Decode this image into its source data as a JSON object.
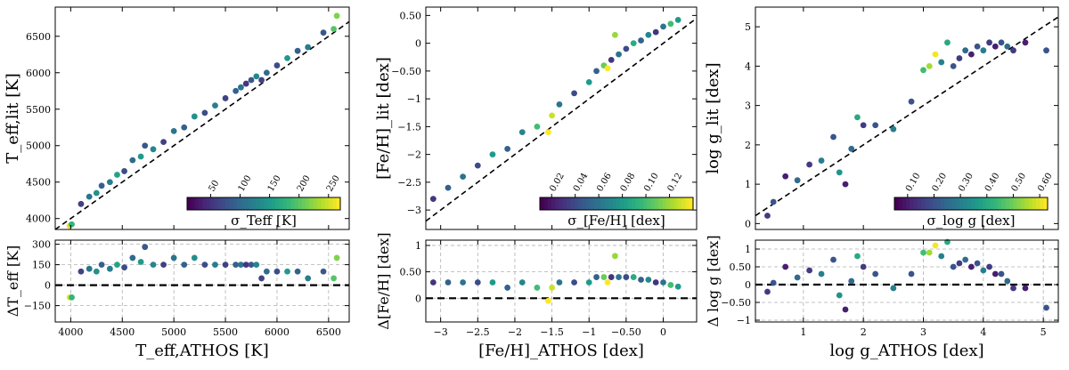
{
  "chart_data": [
    {
      "type": "scatter",
      "panel": "teff",
      "ylabel_top": "T_eff,lit [K]",
      "ylabel_bottom": "ΔT_eff [K]",
      "xlabel": "T_eff,ATHOS [K]",
      "xlim": [
        3850,
        6700
      ],
      "ylim_top": [
        3850,
        6900
      ],
      "ylim_bottom": [
        -270,
        330
      ],
      "xticks": [
        4000,
        4500,
        5000,
        5500,
        6000,
        6500
      ],
      "yticks_top": [
        4000,
        4500,
        5000,
        5500,
        6000,
        6500
      ],
      "yticks_bottom": [
        -150,
        0,
        150,
        300
      ],
      "one_to_one_line": true,
      "zero_line": true,
      "grid_bottom": true,
      "colorbar": {
        "label": "σ_Teff [K]",
        "ticks": [
          50,
          100,
          150,
          200,
          250
        ],
        "range": [
          10,
          270
        ],
        "position": "lower-right"
      },
      "points": [
        {
          "x": 3990,
          "y": 3900,
          "c": 260
        },
        {
          "x": 4010,
          "y": 3920,
          "c": 180
        },
        {
          "x": 4100,
          "y": 4200,
          "c": 60
        },
        {
          "x": 4180,
          "y": 4300,
          "c": 110
        },
        {
          "x": 4250,
          "y": 4350,
          "c": 140
        },
        {
          "x": 4300,
          "y": 4450,
          "c": 90
        },
        {
          "x": 4380,
          "y": 4500,
          "c": 120
        },
        {
          "x": 4450,
          "y": 4600,
          "c": 160
        },
        {
          "x": 4520,
          "y": 4650,
          "c": 70
        },
        {
          "x": 4600,
          "y": 4800,
          "c": 100
        },
        {
          "x": 4680,
          "y": 4850,
          "c": 150
        },
        {
          "x": 4720,
          "y": 5000,
          "c": 80
        },
        {
          "x": 4800,
          "y": 4950,
          "c": 130
        },
        {
          "x": 4900,
          "y": 5050,
          "c": 60
        },
        {
          "x": 5000,
          "y": 5200,
          "c": 110
        },
        {
          "x": 5100,
          "y": 5250,
          "c": 90
        },
        {
          "x": 5200,
          "y": 5400,
          "c": 140
        },
        {
          "x": 5300,
          "y": 5450,
          "c": 70
        },
        {
          "x": 5400,
          "y": 5550,
          "c": 120
        },
        {
          "x": 5500,
          "y": 5650,
          "c": 60
        },
        {
          "x": 5600,
          "y": 5750,
          "c": 90
        },
        {
          "x": 5650,
          "y": 5800,
          "c": 110
        },
        {
          "x": 5700,
          "y": 5850,
          "c": 50
        },
        {
          "x": 5750,
          "y": 5900,
          "c": 80
        },
        {
          "x": 5800,
          "y": 5950,
          "c": 130
        },
        {
          "x": 5850,
          "y": 5900,
          "c": 60
        },
        {
          "x": 5900,
          "y": 6000,
          "c": 100
        },
        {
          "x": 6000,
          "y": 6100,
          "c": 70
        },
        {
          "x": 6100,
          "y": 6200,
          "c": 150
        },
        {
          "x": 6200,
          "y": 6300,
          "c": 90
        },
        {
          "x": 6300,
          "y": 6350,
          "c": 120
        },
        {
          "x": 6450,
          "y": 6550,
          "c": 80
        },
        {
          "x": 6550,
          "y": 6600,
          "c": 200
        },
        {
          "x": 6580,
          "y": 6780,
          "c": 220
        }
      ]
    },
    {
      "type": "scatter",
      "panel": "feh",
      "ylabel_top": "[Fe/H]_lit [dex]",
      "ylabel_bottom": "Δ[Fe/H] [dex]",
      "xlabel": "[Fe/H]_ATHOS [dex]",
      "xlim": [
        -3.2,
        0.45
      ],
      "ylim_top": [
        -3.35,
        0.65
      ],
      "ylim_bottom": [
        -0.45,
        1.1
      ],
      "xticks": [
        -3.0,
        -2.5,
        -2.0,
        -1.5,
        -1.0,
        -0.5,
        0.0
      ],
      "yticks_top": [
        -3.0,
        -2.5,
        -2.0,
        -1.5,
        -1.0,
        -0.5,
        0.0,
        0.5
      ],
      "yticks_bottom": [
        0.0,
        0.5,
        1.0
      ],
      "one_to_one_line": true,
      "zero_line": true,
      "grid_bottom": true,
      "colorbar": {
        "label": "σ_[Fe/H] [dex]",
        "ticks": [
          0.02,
          0.04,
          0.06,
          0.08,
          0.1,
          0.12
        ],
        "range": [
          0.01,
          0.14
        ],
        "position": "lower-right"
      },
      "points": [
        {
          "x": -3.1,
          "y": -2.8,
          "c": 0.03
        },
        {
          "x": -2.9,
          "y": -2.6,
          "c": 0.05
        },
        {
          "x": -2.7,
          "y": -2.4,
          "c": 0.06
        },
        {
          "x": -2.5,
          "y": -2.2,
          "c": 0.04
        },
        {
          "x": -2.3,
          "y": -2.0,
          "c": 0.08
        },
        {
          "x": -2.1,
          "y": -1.9,
          "c": 0.05
        },
        {
          "x": -1.9,
          "y": -1.6,
          "c": 0.07
        },
        {
          "x": -1.7,
          "y": -1.5,
          "c": 0.1
        },
        {
          "x": -1.5,
          "y": -1.3,
          "c": 0.13
        },
        {
          "x": -1.4,
          "y": -1.1,
          "c": 0.06
        },
        {
          "x": -1.2,
          "y": -0.9,
          "c": 0.04
        },
        {
          "x": -1.0,
          "y": -0.7,
          "c": 0.08
        },
        {
          "x": -0.9,
          "y": -0.5,
          "c": 0.05
        },
        {
          "x": -0.8,
          "y": -0.4,
          "c": 0.11
        },
        {
          "x": -0.7,
          "y": -0.3,
          "c": 0.03
        },
        {
          "x": -0.6,
          "y": -0.2,
          "c": 0.06
        },
        {
          "x": -0.5,
          "y": -0.1,
          "c": 0.04
        },
        {
          "x": -0.4,
          "y": 0.0,
          "c": 0.09
        },
        {
          "x": -0.3,
          "y": 0.05,
          "c": 0.05
        },
        {
          "x": -0.2,
          "y": 0.15,
          "c": 0.07
        },
        {
          "x": -0.1,
          "y": 0.2,
          "c": 0.03
        },
        {
          "x": 0.0,
          "y": 0.3,
          "c": 0.06
        },
        {
          "x": 0.1,
          "y": 0.35,
          "c": 0.1
        },
        {
          "x": 0.2,
          "y": 0.42,
          "c": 0.08
        },
        {
          "x": -0.65,
          "y": 0.15,
          "c": 0.12
        },
        {
          "x": -0.75,
          "y": -0.45,
          "c": 0.14
        },
        {
          "x": -1.55,
          "y": -1.6,
          "c": 0.14
        }
      ]
    },
    {
      "type": "scatter",
      "panel": "logg",
      "ylabel_top": "log g_lit [dex]",
      "ylabel_bottom": "Δ log g [dex]",
      "xlabel": "log g_ATHOS [dex]",
      "xlim": [
        0.2,
        5.25
      ],
      "ylim_top": [
        -0.15,
        5.5
      ],
      "ylim_bottom": [
        -1.05,
        1.25
      ],
      "xticks": [
        1,
        2,
        3,
        4,
        5
      ],
      "yticks_top": [
        0,
        1,
        2,
        3,
        4,
        5
      ],
      "yticks_bottom": [
        -1.0,
        -0.5,
        0.0,
        0.5,
        1.0
      ],
      "one_to_one_line": true,
      "zero_line": true,
      "grid_bottom": true,
      "colorbar": {
        "label": "σ_log g [dex]",
        "ticks": [
          0.1,
          0.2,
          0.3,
          0.4,
          0.5,
          0.6
        ],
        "range": [
          0.05,
          0.63
        ],
        "position": "lower-right"
      },
      "points": [
        {
          "x": 0.4,
          "y": 0.2,
          "c": 0.15
        },
        {
          "x": 0.5,
          "y": 0.55,
          "c": 0.2
        },
        {
          "x": 0.7,
          "y": 1.2,
          "c": 0.1
        },
        {
          "x": 0.9,
          "y": 1.1,
          "c": 0.25
        },
        {
          "x": 1.1,
          "y": 1.5,
          "c": 0.15
        },
        {
          "x": 1.3,
          "y": 1.6,
          "c": 0.3
        },
        {
          "x": 1.5,
          "y": 2.2,
          "c": 0.2
        },
        {
          "x": 1.6,
          "y": 1.3,
          "c": 0.35
        },
        {
          "x": 1.7,
          "y": 1.0,
          "c": 0.1
        },
        {
          "x": 1.8,
          "y": 1.9,
          "c": 0.25
        },
        {
          "x": 1.9,
          "y": 2.7,
          "c": 0.4
        },
        {
          "x": 2.0,
          "y": 2.5,
          "c": 0.15
        },
        {
          "x": 2.2,
          "y": 2.5,
          "c": 0.2
        },
        {
          "x": 2.5,
          "y": 2.4,
          "c": 0.3
        },
        {
          "x": 2.8,
          "y": 3.1,
          "c": 0.2
        },
        {
          "x": 3.0,
          "y": 3.9,
          "c": 0.45
        },
        {
          "x": 3.1,
          "y": 4.0,
          "c": 0.55
        },
        {
          "x": 3.2,
          "y": 4.3,
          "c": 0.62
        },
        {
          "x": 3.3,
          "y": 4.1,
          "c": 0.3
        },
        {
          "x": 3.4,
          "y": 4.6,
          "c": 0.4
        },
        {
          "x": 3.5,
          "y": 4.0,
          "c": 0.2
        },
        {
          "x": 3.6,
          "y": 4.2,
          "c": 0.15
        },
        {
          "x": 3.7,
          "y": 4.4,
          "c": 0.25
        },
        {
          "x": 3.8,
          "y": 4.3,
          "c": 0.1
        },
        {
          "x": 3.9,
          "y": 4.5,
          "c": 0.2
        },
        {
          "x": 4.0,
          "y": 4.4,
          "c": 0.3
        },
        {
          "x": 4.1,
          "y": 4.6,
          "c": 0.15
        },
        {
          "x": 4.2,
          "y": 4.5,
          "c": 0.1
        },
        {
          "x": 4.3,
          "y": 4.6,
          "c": 0.2
        },
        {
          "x": 4.4,
          "y": 4.5,
          "c": 0.25
        },
        {
          "x": 4.5,
          "y": 4.4,
          "c": 0.15
        },
        {
          "x": 4.7,
          "y": 4.6,
          "c": 0.1
        },
        {
          "x": 5.05,
          "y": 4.4,
          "c": 0.2
        }
      ]
    }
  ]
}
